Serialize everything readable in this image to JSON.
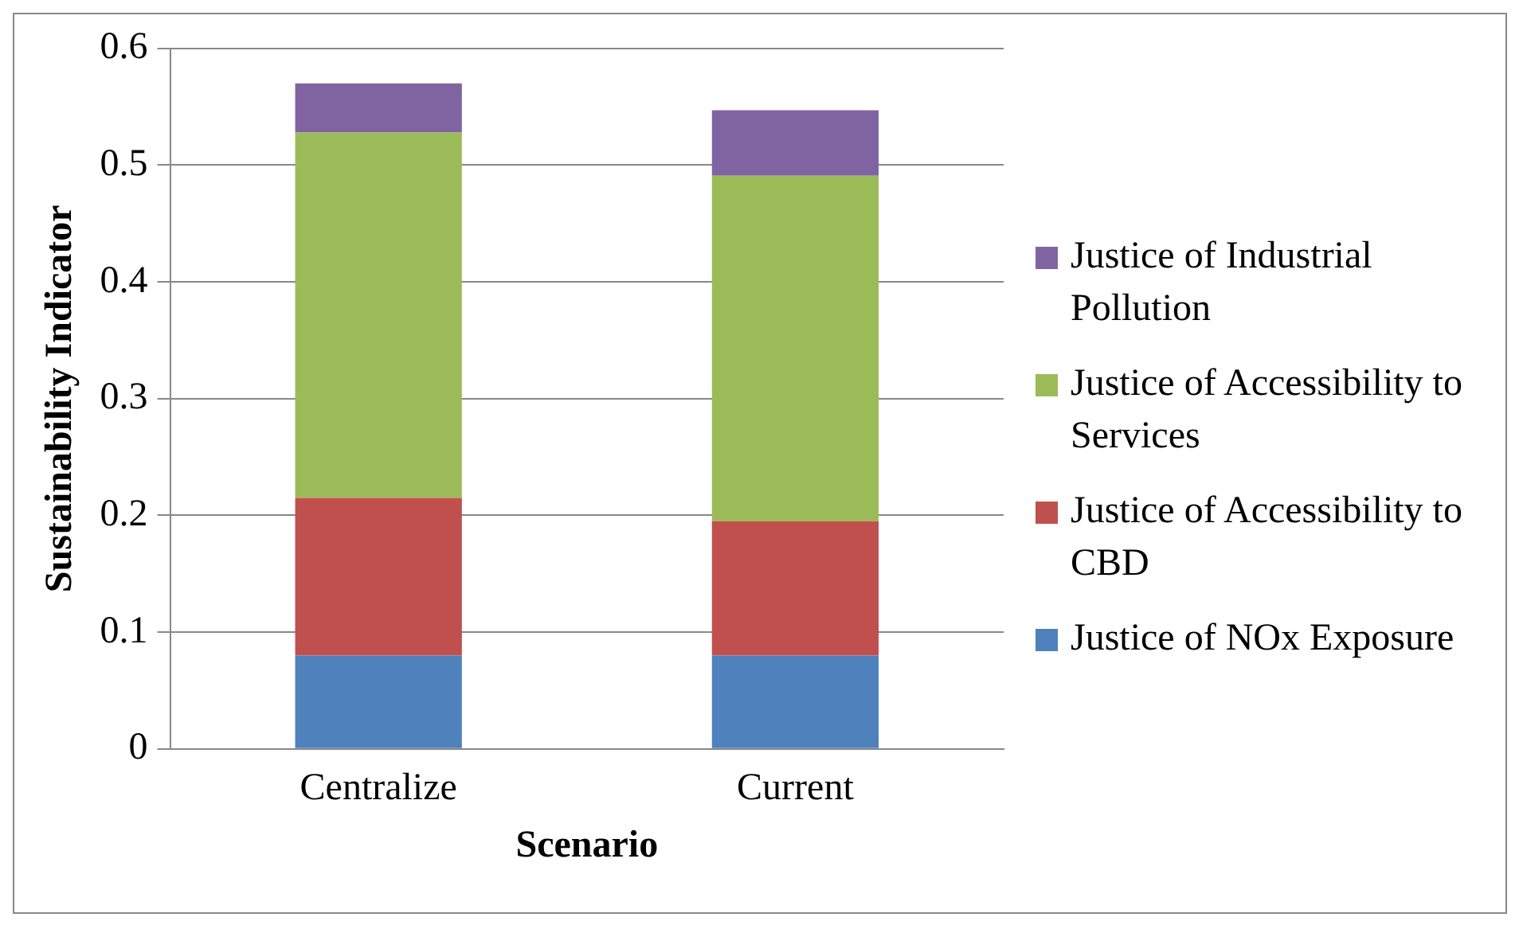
{
  "chart_data": {
    "type": "bar",
    "stacked": true,
    "xlabel": "Scenario",
    "ylabel": "Sustainability Indicator",
    "categories": [
      "Centralize",
      "Current"
    ],
    "series": [
      {
        "name": "Justice of NOx Exposure",
        "color": "#4f81bd",
        "values": [
          0.08,
          0.08
        ]
      },
      {
        "name": "Justice of Accessibility to CBD",
        "color": "#c0504d",
        "values": [
          0.135,
          0.115
        ]
      },
      {
        "name": "Justice of Accessibility to Services",
        "color": "#9bbb59",
        "values": [
          0.313,
          0.296
        ]
      },
      {
        "name": "Justice of Industrial Pollution",
        "color": "#8064a2",
        "values": [
          0.042,
          0.056
        ]
      }
    ],
    "ylim": [
      0,
      0.6
    ],
    "yticks": [
      0,
      0.1,
      0.2,
      0.3,
      0.4,
      0.5,
      0.6
    ],
    "grid": "y",
    "legend": "right"
  }
}
